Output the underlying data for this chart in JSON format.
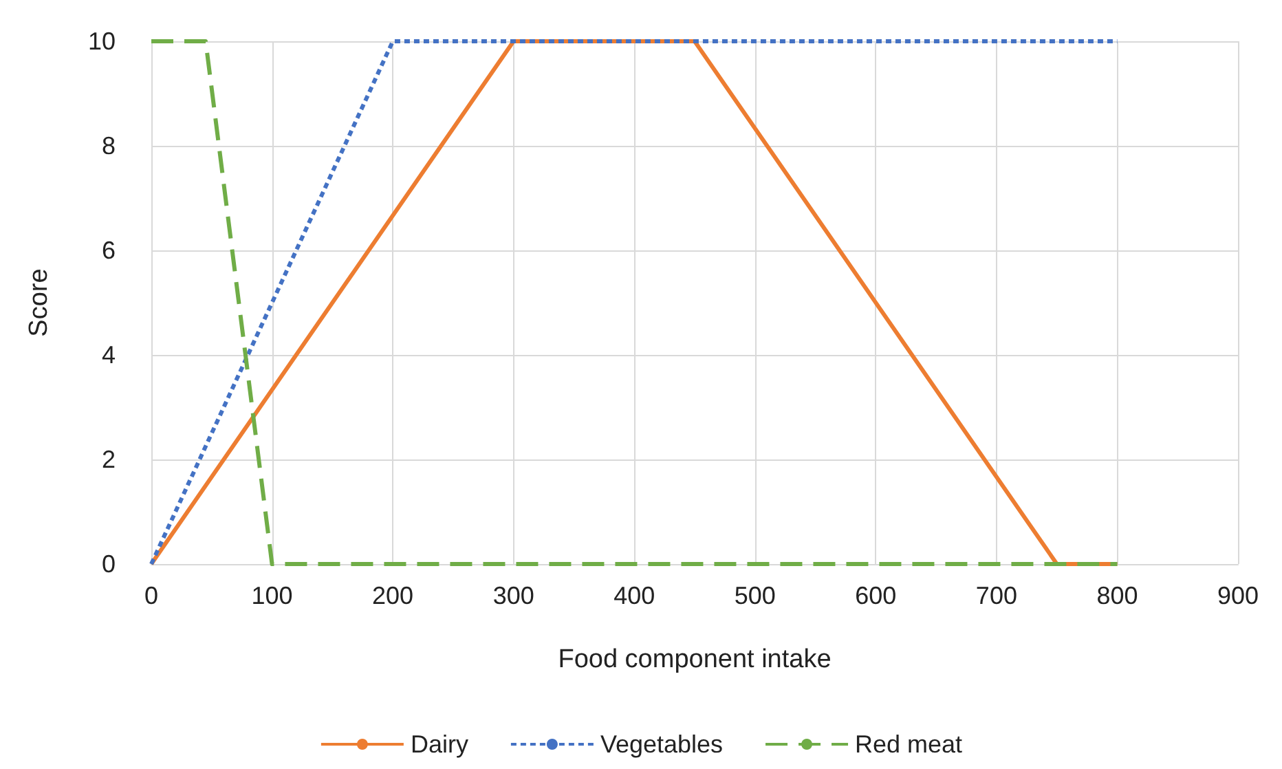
{
  "chart_data": {
    "type": "line",
    "xlabel": "Food component intake",
    "ylabel": "Score",
    "xlim": [
      0,
      900
    ],
    "xticks": [
      0,
      100,
      200,
      300,
      400,
      500,
      600,
      700,
      800,
      900
    ],
    "ylim": [
      0,
      10
    ],
    "yticks": [
      0,
      2,
      4,
      6,
      8,
      10
    ],
    "grid": true,
    "legend": "bottom",
    "marker": "none",
    "series": [
      {
        "name": "Dairy",
        "color": "#ed7d31",
        "line_style": "solid",
        "x": [
          0,
          300,
          450,
          750,
          800
        ],
        "values": [
          0,
          10,
          10,
          0,
          0
        ]
      },
      {
        "name": "Vegetables",
        "color": "#4472c4",
        "line_style": "dotted",
        "x": [
          0,
          200,
          800
        ],
        "values": [
          0,
          10,
          10
        ]
      },
      {
        "name": "Red meat",
        "color": "#70ad47",
        "line_style": "dashed",
        "x": [
          0,
          45,
          100,
          800
        ],
        "values": [
          10,
          10,
          0,
          0
        ]
      }
    ]
  }
}
